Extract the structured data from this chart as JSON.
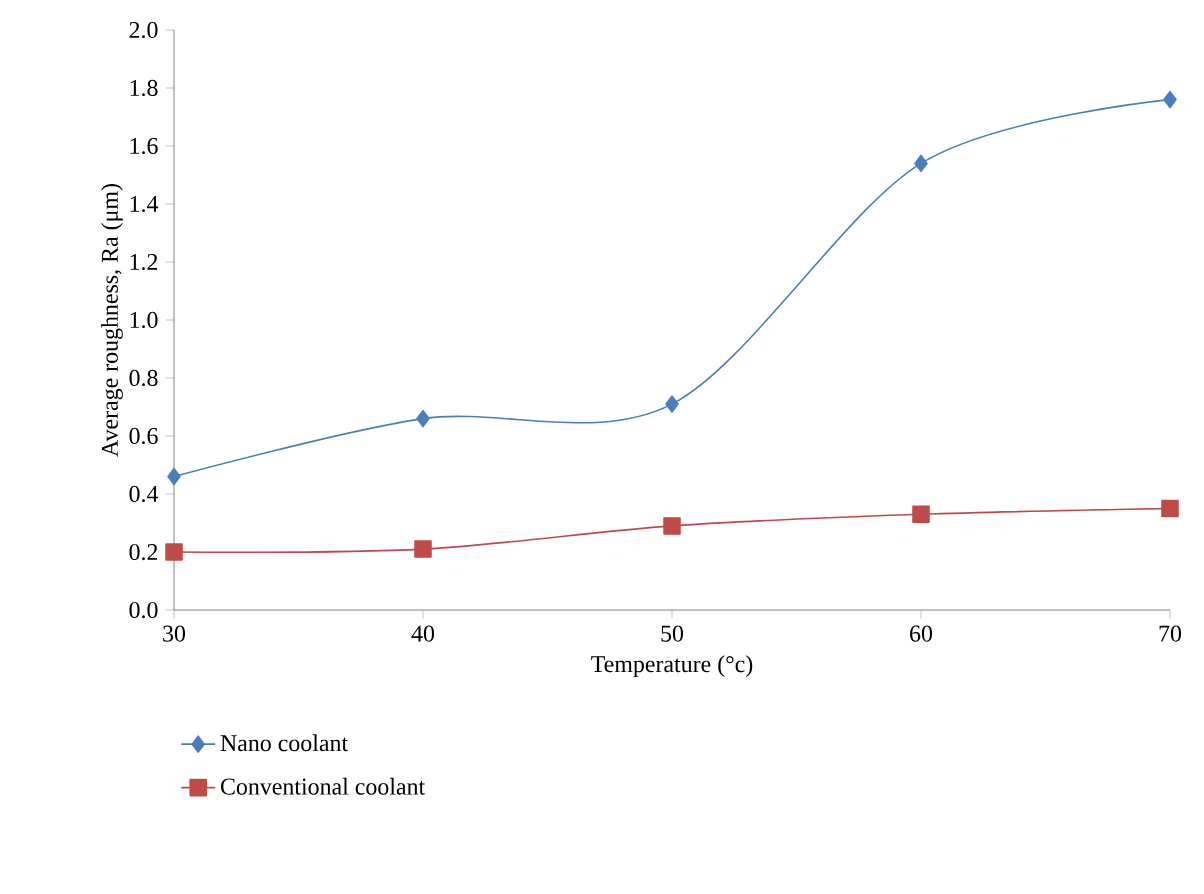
{
  "chart_data": {
    "type": "line",
    "xlabel": "Temperature (°c)",
    "ylabel": "Average roughness, Ra (μm)",
    "x": [
      30,
      40,
      50,
      60,
      70
    ],
    "series": [
      {
        "name": "Nano coolant",
        "color": "#4a7ebb",
        "marker": "diamond",
        "values": [
          0.46,
          0.66,
          0.71,
          1.54,
          1.76
        ]
      },
      {
        "name": "Conventional coolant",
        "color": "#be4b48",
        "marker": "square",
        "values": [
          0.2,
          0.21,
          0.29,
          0.33,
          0.35
        ]
      }
    ],
    "xlim": [
      30,
      70
    ],
    "xticks": [
      30,
      40,
      50,
      60,
      70
    ],
    "ylim": [
      0,
      2
    ],
    "yticks": [
      {
        "value": 0,
        "label": "0.0"
      },
      {
        "value": 0.2,
        "label": "0.2"
      },
      {
        "value": 0.4,
        "label": "0.4"
      },
      {
        "value": 0.6,
        "label": "0.6"
      },
      {
        "value": 0.8,
        "label": "0.8"
      },
      {
        "value": 1.0,
        "label": "1.0"
      },
      {
        "value": 1.2,
        "label": "1.2"
      },
      {
        "value": 1.4,
        "label": "1.4"
      },
      {
        "value": 1.6,
        "label": "1.6"
      },
      {
        "value": 1.8,
        "label": "1.8"
      },
      {
        "value": 2.0,
        "label": "2.0"
      }
    ],
    "legend": "bottom",
    "grid": false
  }
}
